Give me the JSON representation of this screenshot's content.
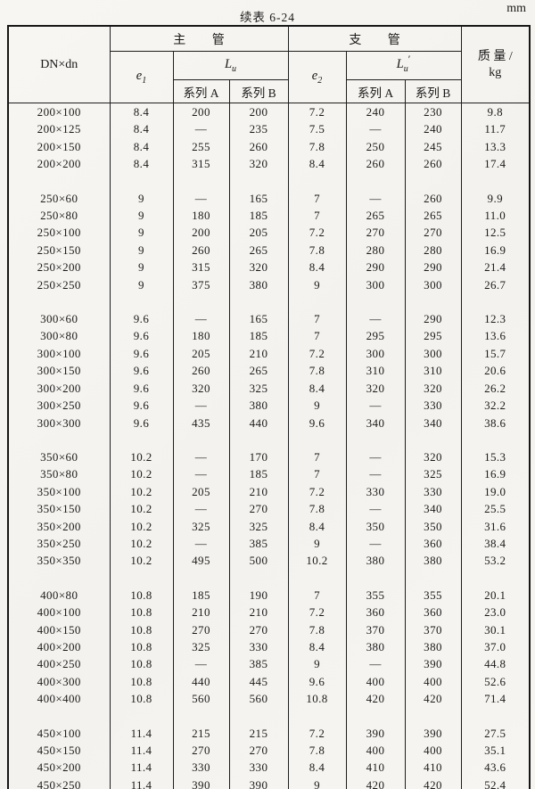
{
  "page": {
    "title": "续表 6-24",
    "unit": "mm"
  },
  "table": {
    "headers": {
      "dn": "DN×dn",
      "main_group": "主管",
      "branch_group": "支管",
      "e1": {
        "base": "e",
        "sub": "1"
      },
      "e2": {
        "base": "e",
        "sub": "2"
      },
      "lu": {
        "base": "L",
        "sub": "u",
        "prime": ""
      },
      "lu_prime": {
        "base": "L",
        "sub": "u",
        "prime": "′"
      },
      "series_a_main": "系列 A",
      "series_b_main": "系列 B",
      "series_a_branch": "系列 A",
      "series_b_branch": "系列 B",
      "mass_line1": "质量/",
      "mass_line2": "kg"
    },
    "groups": [
      {
        "rows": [
          [
            "200×100",
            "8.4",
            "200",
            "200",
            "7.2",
            "240",
            "230",
            "9.8"
          ],
          [
            "200×125",
            "8.4",
            "—",
            "235",
            "7.5",
            "—",
            "240",
            "11.7"
          ],
          [
            "200×150",
            "8.4",
            "255",
            "260",
            "7.8",
            "250",
            "245",
            "13.3"
          ],
          [
            "200×200",
            "8.4",
            "315",
            "320",
            "8.4",
            "260",
            "260",
            "17.4"
          ]
        ]
      },
      {
        "rows": [
          [
            "250×60",
            "9",
            "—",
            "165",
            "7",
            "—",
            "260",
            "9.9"
          ],
          [
            "250×80",
            "9",
            "180",
            "185",
            "7",
            "265",
            "265",
            "11.0"
          ],
          [
            "250×100",
            "9",
            "200",
            "205",
            "7.2",
            "270",
            "270",
            "12.5"
          ],
          [
            "250×150",
            "9",
            "260",
            "265",
            "7.8",
            "280",
            "280",
            "16.9"
          ],
          [
            "250×200",
            "9",
            "315",
            "320",
            "8.4",
            "290",
            "290",
            "21.4"
          ],
          [
            "250×250",
            "9",
            "375",
            "380",
            "9",
            "300",
            "300",
            "26.7"
          ]
        ]
      },
      {
        "rows": [
          [
            "300×60",
            "9.6",
            "—",
            "165",
            "7",
            "—",
            "290",
            "12.3"
          ],
          [
            "300×80",
            "9.6",
            "180",
            "185",
            "7",
            "295",
            "295",
            "13.6"
          ],
          [
            "300×100",
            "9.6",
            "205",
            "210",
            "7.2",
            "300",
            "300",
            "15.7"
          ],
          [
            "300×150",
            "9.6",
            "260",
            "265",
            "7.8",
            "310",
            "310",
            "20.6"
          ],
          [
            "300×200",
            "9.6",
            "320",
            "325",
            "8.4",
            "320",
            "320",
            "26.2"
          ],
          [
            "300×250",
            "9.6",
            "—",
            "380",
            "9",
            "—",
            "330",
            "32.2"
          ],
          [
            "300×300",
            "9.6",
            "435",
            "440",
            "9.6",
            "340",
            "340",
            "38.6"
          ]
        ]
      },
      {
        "rows": [
          [
            "350×60",
            "10.2",
            "—",
            "170",
            "7",
            "—",
            "320",
            "15.3"
          ],
          [
            "350×80",
            "10.2",
            "—",
            "185",
            "7",
            "—",
            "325",
            "16.9"
          ],
          [
            "350×100",
            "10.2",
            "205",
            "210",
            "7.2",
            "330",
            "330",
            "19.0"
          ],
          [
            "350×150",
            "10.2",
            "—",
            "270",
            "7.8",
            "—",
            "340",
            "25.5"
          ],
          [
            "350×200",
            "10.2",
            "325",
            "325",
            "8.4",
            "350",
            "350",
            "31.6"
          ],
          [
            "350×250",
            "10.2",
            "—",
            "385",
            "9",
            "—",
            "360",
            "38.4"
          ],
          [
            "350×350",
            "10.2",
            "495",
            "500",
            "10.2",
            "380",
            "380",
            "53.2"
          ]
        ]
      },
      {
        "rows": [
          [
            "400×80",
            "10.8",
            "185",
            "190",
            "7",
            "355",
            "355",
            "20.1"
          ],
          [
            "400×100",
            "10.8",
            "210",
            "210",
            "7.2",
            "360",
            "360",
            "23.0"
          ],
          [
            "400×150",
            "10.8",
            "270",
            "270",
            "7.8",
            "370",
            "370",
            "30.1"
          ],
          [
            "400×200",
            "10.8",
            "325",
            "330",
            "8.4",
            "380",
            "380",
            "37.0"
          ],
          [
            "400×250",
            "10.8",
            "—",
            "385",
            "9",
            "—",
            "390",
            "44.8"
          ],
          [
            "400×300",
            "10.8",
            "440",
            "445",
            "9.6",
            "400",
            "400",
            "52.6"
          ],
          [
            "400×400",
            "10.8",
            "560",
            "560",
            "10.8",
            "420",
            "420",
            "71.4"
          ]
        ]
      },
      {
        "rows": [
          [
            "450×100",
            "11.4",
            "215",
            "215",
            "7.2",
            "390",
            "390",
            "27.5"
          ],
          [
            "450×150",
            "11.4",
            "270",
            "270",
            "7.8",
            "400",
            "400",
            "35.1"
          ],
          [
            "450×200",
            "11.4",
            "330",
            "330",
            "8.4",
            "410",
            "410",
            "43.6"
          ],
          [
            "450×250",
            "11.4",
            "390",
            "390",
            "9",
            "420",
            "420",
            "52.4"
          ]
        ]
      }
    ]
  }
}
